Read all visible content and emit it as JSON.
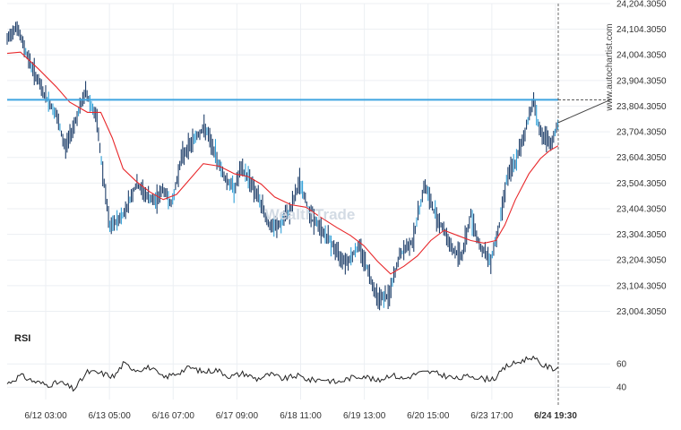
{
  "watermark_brand": "www.autochartist.com",
  "watermark_logo": "WealthTrade",
  "colors": {
    "candle": "#1f3f6a",
    "bar_accent": "#2fa0d8",
    "moving_average": "#e8282b",
    "resistance": "#3fa5e0",
    "rsi": "#222222",
    "grid": "#eceff3",
    "text": "#333333",
    "marker": "#444444"
  },
  "chart_data": [
    {
      "type": "line",
      "name_hint": "price-panel",
      "title": "",
      "x": [
        "6/12 03:00",
        "6/13 05:00",
        "6/16 07:00",
        "6/17 09:00",
        "6/18 11:00",
        "6/19 13:00",
        "6/20 15:00",
        "6/23 17:00",
        "6/24 19:30"
      ],
      "x_ticks_note": "time index 0..615 across the plot; tick labels at evenly spaced positions",
      "y_ticks": [
        "24,204.3050",
        "24,104.3050",
        "24,004.3050",
        "23,904.3050",
        "23,804.3050",
        "23,704.3050",
        "23,604.3050",
        "23,504.3050",
        "23,404.3050",
        "23,304.3050",
        "23,204.3050",
        "23,104.3050",
        "23,004.3050"
      ],
      "ylim": [
        22950,
        24204.305
      ],
      "resistance_level": 23829,
      "price_path": [
        [
          0,
          24060
        ],
        [
          10,
          24120
        ],
        [
          25,
          23980
        ],
        [
          40,
          23860
        ],
        [
          55,
          23770
        ],
        [
          65,
          23640
        ],
        [
          80,
          23780
        ],
        [
          88,
          23860
        ],
        [
          100,
          23760
        ],
        [
          108,
          23520
        ],
        [
          115,
          23330
        ],
        [
          130,
          23380
        ],
        [
          145,
          23500
        ],
        [
          155,
          23460
        ],
        [
          165,
          23430
        ],
        [
          175,
          23480
        ],
        [
          185,
          23420
        ],
        [
          195,
          23600
        ],
        [
          210,
          23680
        ],
        [
          222,
          23720
        ],
        [
          235,
          23600
        ],
        [
          245,
          23520
        ],
        [
          255,
          23480
        ],
        [
          262,
          23560
        ],
        [
          272,
          23520
        ],
        [
          285,
          23420
        ],
        [
          295,
          23330
        ],
        [
          305,
          23340
        ],
        [
          318,
          23400
        ],
        [
          328,
          23510
        ],
        [
          338,
          23400
        ],
        [
          350,
          23330
        ],
        [
          362,
          23280
        ],
        [
          372,
          23220
        ],
        [
          382,
          23200
        ],
        [
          395,
          23260
        ],
        [
          405,
          23160
        ],
        [
          415,
          23060
        ],
        [
          428,
          23060
        ],
        [
          440,
          23220
        ],
        [
          455,
          23280
        ],
        [
          468,
          23500
        ],
        [
          478,
          23400
        ],
        [
          490,
          23320
        ],
        [
          500,
          23240
        ],
        [
          510,
          23220
        ],
        [
          520,
          23380
        ],
        [
          530,
          23260
        ],
        [
          542,
          23200
        ],
        [
          552,
          23340
        ],
        [
          560,
          23520
        ],
        [
          572,
          23600
        ],
        [
          582,
          23720
        ],
        [
          590,
          23830
        ],
        [
          598,
          23700
        ],
        [
          610,
          23650
        ],
        [
          618,
          23740
        ]
      ],
      "moving_average": [
        [
          0,
          24010
        ],
        [
          15,
          24015
        ],
        [
          35,
          23950
        ],
        [
          55,
          23880
        ],
        [
          70,
          23820
        ],
        [
          90,
          23780
        ],
        [
          105,
          23780
        ],
        [
          118,
          23680
        ],
        [
          130,
          23560
        ],
        [
          145,
          23510
        ],
        [
          160,
          23470
        ],
        [
          175,
          23440
        ],
        [
          190,
          23460
        ],
        [
          205,
          23520
        ],
        [
          220,
          23580
        ],
        [
          238,
          23570
        ],
        [
          255,
          23540
        ],
        [
          270,
          23530
        ],
        [
          285,
          23500
        ],
        [
          300,
          23450
        ],
        [
          318,
          23420
        ],
        [
          335,
          23410
        ],
        [
          352,
          23370
        ],
        [
          370,
          23330
        ],
        [
          385,
          23300
        ],
        [
          400,
          23260
        ],
        [
          415,
          23200
        ],
        [
          430,
          23150
        ],
        [
          445,
          23180
        ],
        [
          460,
          23220
        ],
        [
          475,
          23280
        ],
        [
          490,
          23320
        ],
        [
          505,
          23300
        ],
        [
          520,
          23280
        ],
        [
          535,
          23270
        ],
        [
          548,
          23280
        ],
        [
          558,
          23340
        ],
        [
          570,
          23440
        ],
        [
          585,
          23540
        ],
        [
          598,
          23600
        ],
        [
          608,
          23630
        ],
        [
          618,
          23650
        ]
      ]
    },
    {
      "type": "line",
      "name_hint": "rsi-panel",
      "title": "RSI",
      "y_ticks": [
        "60",
        "40"
      ],
      "ylim": [
        34,
        74
      ],
      "rsi_path": [
        [
          0,
          43
        ],
        [
          15,
          50
        ],
        [
          30,
          45
        ],
        [
          45,
          42
        ],
        [
          60,
          44
        ],
        [
          75,
          38
        ],
        [
          90,
          53
        ],
        [
          105,
          52
        ],
        [
          120,
          49
        ],
        [
          130,
          60
        ],
        [
          145,
          55
        ],
        [
          160,
          57
        ],
        [
          175,
          48
        ],
        [
          190,
          52
        ],
        [
          205,
          57
        ],
        [
          220,
          53
        ],
        [
          235,
          55
        ],
        [
          250,
          49
        ],
        [
          265,
          52
        ],
        [
          280,
          47
        ],
        [
          295,
          51
        ],
        [
          310,
          47
        ],
        [
          325,
          50
        ],
        [
          340,
          46
        ],
        [
          355,
          47
        ],
        [
          370,
          44
        ],
        [
          385,
          48
        ],
        [
          400,
          50
        ],
        [
          415,
          45
        ],
        [
          430,
          51
        ],
        [
          445,
          47
        ],
        [
          460,
          52
        ],
        [
          475,
          53
        ],
        [
          490,
          50
        ],
        [
          505,
          47
        ],
        [
          520,
          50
        ],
        [
          535,
          47
        ],
        [
          548,
          48
        ],
        [
          560,
          58
        ],
        [
          575,
          62
        ],
        [
          588,
          66
        ],
        [
          600,
          59
        ],
        [
          612,
          56
        ],
        [
          618,
          57
        ]
      ]
    }
  ]
}
